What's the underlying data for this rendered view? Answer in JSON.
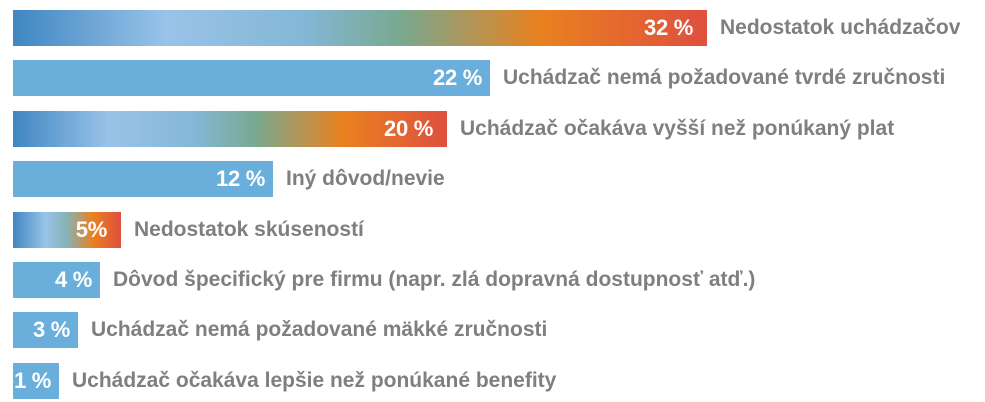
{
  "chart_data": {
    "type": "bar",
    "orientation": "horizontal",
    "title": "",
    "xlabel": "",
    "ylabel": "",
    "xlim": [
      0,
      32
    ],
    "grid": false,
    "categories": [
      "Nedostatok uchádzačov",
      "Uchádzač nemá požadované tvrdé zručnosti",
      "Uchádzač očakáva vyšší než ponúkaný plat",
      "Iný dôvod/nevie",
      "Nedostatok skúseností",
      "Dôvod špecifický pre firmu (napr. zlá dopravná dostupnosť atď.)",
      "Uchádzač nemá požadované mäkké zručnosti",
      "Uchádzač očakáva lepšie než ponúkané benefity"
    ],
    "values": [
      32,
      22,
      20,
      12,
      5,
      4,
      3,
      1
    ],
    "value_labels": [
      "32 %",
      "22 %",
      "20 %",
      "12 %",
      "5%",
      "4 %",
      "3 %",
      "1 %"
    ],
    "bar_styles": [
      "gradient",
      "solid",
      "gradient",
      "solid",
      "gradient",
      "solid",
      "solid",
      "solid"
    ],
    "colors": {
      "solid": "#6aaedb",
      "gradient_start": "#3f86c2",
      "gradient_mid": "#99c3e8",
      "gradient_orange": "#e9811f",
      "gradient_end": "#df4f3e",
      "label_text": "#7f7f7f",
      "value_text": "#ffffff"
    }
  }
}
